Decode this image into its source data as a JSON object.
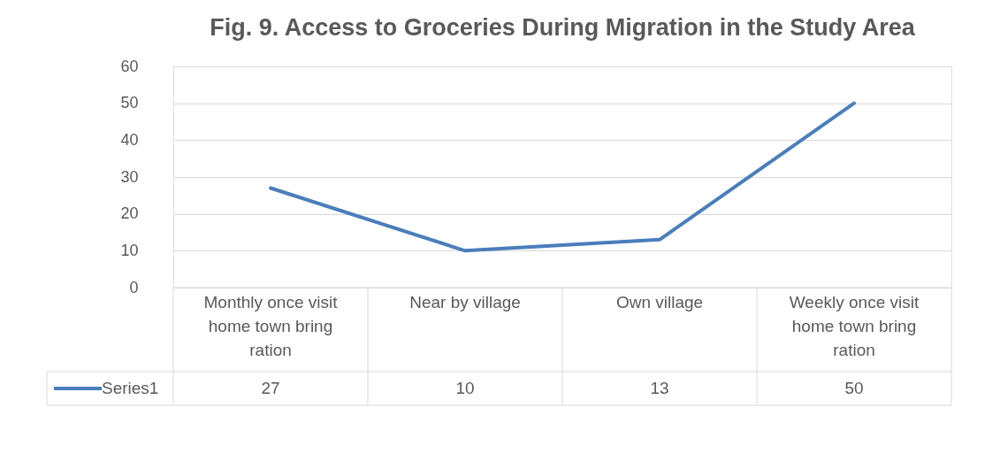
{
  "chart_data": {
    "type": "line",
    "title": "Fig. 9. Access to Groceries During Migration in the Study Area",
    "categories": [
      "Monthly once visit home town bring ration",
      "Near by village",
      "Own village",
      "Weekly once visit home town bring ration"
    ],
    "series": [
      {
        "name": "Series1",
        "color": "#4a7ebb",
        "values": [
          27,
          10,
          13,
          50
        ]
      }
    ],
    "ylim": [
      0,
      60
    ],
    "yticks": [
      0,
      10,
      20,
      30,
      40,
      50,
      60
    ],
    "grid": "y",
    "data_labels": true,
    "legend": "bottom"
  }
}
